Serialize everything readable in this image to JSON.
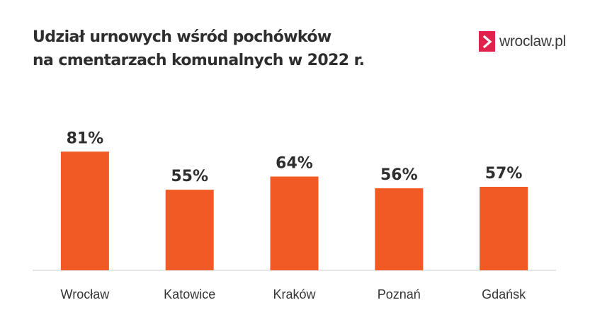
{
  "header": {
    "title_line1": "Udział urnowych wśród pochówków",
    "title_line2": "na cmentarzach komunalnych w 2022 r."
  },
  "logo": {
    "text": "wroclaw.pl",
    "icon": "chevron-right-icon",
    "color": "#e0214b"
  },
  "colors": {
    "bar": "#f15a24",
    "text": "#2e2e2e",
    "axis": "#cccccc"
  },
  "chart_data": {
    "type": "bar",
    "categories": [
      "Wrocław",
      "Katowice",
      "Kraków",
      "Poznań",
      "Gdańsk"
    ],
    "values": [
      81,
      55,
      64,
      56,
      57
    ],
    "value_labels": [
      "81%",
      "55%",
      "64%",
      "56%",
      "57%"
    ],
    "unit": "%",
    "title": "Udział urnowych wśród pochówków na cmentarzach komunalnych w 2022 r.",
    "xlabel": "",
    "ylabel": "",
    "ylim": [
      0,
      100
    ],
    "grid": false,
    "legend": "none"
  }
}
